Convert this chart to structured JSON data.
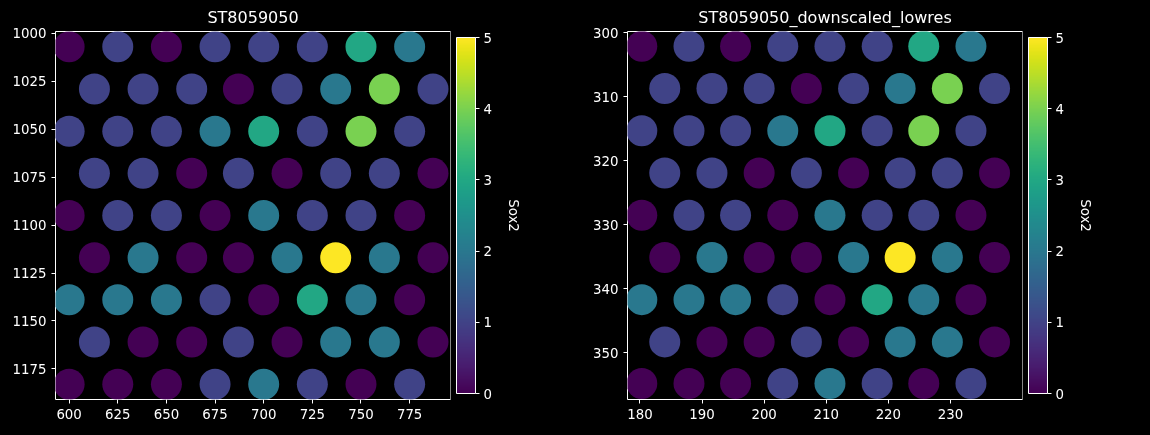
{
  "chart_data": [
    {
      "type": "scatter",
      "title": "ST8059050",
      "clabel": "Sox2",
      "marker": "circle",
      "grid": false,
      "x": [
        600,
        625,
        650,
        675,
        700,
        725,
        750,
        775,
        613,
        638,
        663,
        687,
        712,
        737,
        762,
        787,
        600,
        625,
        650,
        675,
        700,
        725,
        750,
        775,
        613,
        638,
        663,
        687,
        712,
        737,
        762,
        787,
        600,
        625,
        650,
        675,
        700,
        725,
        750,
        775,
        613,
        638,
        663,
        687,
        712,
        737,
        762,
        787,
        600,
        625,
        650,
        675,
        700,
        725,
        750,
        775,
        613,
        638,
        663,
        687,
        712,
        737,
        762,
        787,
        600,
        625,
        650,
        675,
        700,
        725,
        750,
        775
      ],
      "values": [
        1007,
        1007,
        1007,
        1007,
        1007,
        1007,
        1007,
        1007,
        1029,
        1029,
        1029,
        1029,
        1029,
        1029,
        1029,
        1029,
        1051,
        1051,
        1051,
        1051,
        1051,
        1051,
        1051,
        1051,
        1073,
        1073,
        1073,
        1073,
        1073,
        1073,
        1073,
        1073,
        1095,
        1095,
        1095,
        1095,
        1095,
        1095,
        1095,
        1095,
        1117,
        1117,
        1117,
        1117,
        1117,
        1117,
        1117,
        1117,
        1139,
        1139,
        1139,
        1139,
        1139,
        1139,
        1139,
        1139,
        1161,
        1161,
        1161,
        1161,
        1161,
        1161,
        1161,
        1161,
        1183,
        1183,
        1183,
        1183,
        1183,
        1183,
        1183,
        1183
      ],
      "cvalues": [
        0,
        1,
        0,
        1,
        1,
        1,
        3,
        2,
        1,
        1,
        1,
        0,
        1,
        2,
        4,
        1,
        1,
        1,
        1,
        2,
        3,
        1,
        4,
        1,
        1,
        1,
        0,
        1,
        0,
        1,
        1,
        0,
        0,
        1,
        1,
        0,
        2,
        1,
        1,
        0,
        0,
        2,
        0,
        0,
        2,
        5,
        2,
        0,
        2,
        2,
        2,
        1,
        0,
        3,
        2,
        0,
        1,
        0,
        0,
        1,
        0,
        2,
        2,
        0,
        0,
        0,
        0,
        1,
        2,
        1,
        0,
        1
      ],
      "xlim": [
        593,
        796
      ],
      "ylim": [
        1191,
        999
      ],
      "xticks": [
        600,
        625,
        650,
        675,
        700,
        725,
        750,
        775
      ],
      "yticks": [
        1000,
        1025,
        1050,
        1075,
        1100,
        1125,
        1150,
        1175
      ],
      "clim": [
        0,
        5
      ],
      "cticks": [
        0,
        1,
        2,
        3,
        4,
        5
      ]
    },
    {
      "type": "scatter",
      "title": "ST8059050_downscaled_lowres",
      "clabel": "Sox2",
      "marker": "circle",
      "grid": false,
      "x": [
        180.3,
        187.9,
        195.4,
        203.0,
        210.6,
        218.2,
        225.7,
        233.3,
        184.0,
        191.6,
        199.2,
        206.8,
        214.4,
        221.9,
        229.5,
        237.1,
        180.3,
        187.9,
        195.4,
        203.0,
        210.6,
        218.2,
        225.7,
        233.3,
        184.0,
        191.6,
        199.2,
        206.8,
        214.4,
        221.9,
        229.5,
        237.1,
        180.3,
        187.9,
        195.4,
        203.0,
        210.6,
        218.2,
        225.7,
        233.3,
        184.0,
        191.6,
        199.2,
        206.8,
        214.4,
        221.9,
        229.5,
        237.1,
        180.3,
        187.9,
        195.4,
        203.0,
        210.6,
        218.2,
        225.7,
        233.3,
        184.0,
        191.6,
        199.2,
        206.8,
        214.4,
        221.9,
        229.5,
        237.1,
        180.3,
        187.9,
        195.4,
        203.0,
        210.6,
        218.2,
        225.7,
        233.3
      ],
      "values": [
        302.1,
        302.1,
        302.1,
        302.1,
        302.1,
        302.1,
        302.1,
        302.1,
        308.7,
        308.7,
        308.7,
        308.7,
        308.7,
        308.7,
        308.7,
        308.7,
        315.3,
        315.3,
        315.3,
        315.3,
        315.3,
        315.3,
        315.3,
        315.3,
        321.9,
        321.9,
        321.9,
        321.9,
        321.9,
        321.9,
        321.9,
        321.9,
        328.5,
        328.5,
        328.5,
        328.5,
        328.5,
        328.5,
        328.5,
        328.5,
        335.1,
        335.1,
        335.1,
        335.1,
        335.1,
        335.1,
        335.1,
        335.1,
        341.7,
        341.7,
        341.7,
        341.7,
        341.7,
        341.7,
        341.7,
        341.7,
        348.3,
        348.3,
        348.3,
        348.3,
        348.3,
        348.3,
        348.3,
        348.3,
        354.8,
        354.8,
        354.8,
        354.8,
        354.8,
        354.8,
        354.8,
        354.8
      ],
      "cvalues": [
        0,
        1,
        0,
        1,
        1,
        1,
        3,
        2,
        1,
        1,
        1,
        0,
        1,
        2,
        4,
        1,
        1,
        1,
        1,
        2,
        3,
        1,
        4,
        1,
        1,
        1,
        0,
        1,
        0,
        1,
        1,
        0,
        0,
        1,
        1,
        0,
        2,
        1,
        1,
        0,
        0,
        2,
        0,
        0,
        2,
        5,
        2,
        0,
        2,
        2,
        2,
        1,
        0,
        3,
        2,
        0,
        1,
        0,
        0,
        1,
        0,
        2,
        2,
        0,
        0,
        0,
        0,
        1,
        2,
        1,
        0,
        1
      ],
      "xlim": [
        178,
        241.6
      ],
      "ylim": [
        357.3,
        299.8
      ],
      "xticks": [
        180,
        190,
        200,
        210,
        220,
        230
      ],
      "yticks": [
        300,
        310,
        320,
        330,
        340,
        350
      ],
      "clim": [
        0,
        5
      ],
      "cticks": [
        0,
        1,
        2,
        3,
        4,
        5
      ]
    }
  ]
}
